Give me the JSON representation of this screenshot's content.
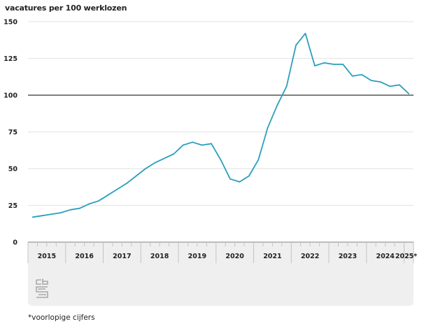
{
  "chart_data": {
    "type": "line",
    "title": "",
    "ylabel": "vacatures per 100 werklozen",
    "xlabel": "",
    "ylim": [
      0,
      150
    ],
    "yticks": [
      "0",
      "25",
      "50",
      "75",
      "100",
      "125",
      "150"
    ],
    "ytick_values": [
      0,
      25,
      50,
      75,
      100,
      125,
      150
    ],
    "xticks": [
      "2015",
      "2016",
      "2017",
      "2018",
      "2019",
      "2020",
      "2021",
      "2022",
      "2023",
      "2024",
      "2025*"
    ],
    "grid": true,
    "reference_line": {
      "y": 100,
      "label": "100"
    },
    "legend": "none",
    "series": [
      {
        "name": "vacatures per 100 werklozen",
        "color": "#2a9fbc",
        "x": [
          "2015K1",
          "2015K2",
          "2015K3",
          "2015K4",
          "2016K1",
          "2016K2",
          "2016K3",
          "2016K4",
          "2017K1",
          "2017K2",
          "2017K3",
          "2017K4",
          "2018K1",
          "2018K2",
          "2018K3",
          "2018K4",
          "2019K1",
          "2019K2",
          "2019K3",
          "2019K4",
          "2020K1",
          "2020K2",
          "2020K3",
          "2020K4",
          "2021K1",
          "2021K2",
          "2021K3",
          "2021K4",
          "2022K1",
          "2022K2",
          "2022K3",
          "2022K4",
          "2023K1",
          "2023K2",
          "2023K3",
          "2023K4",
          "2024K1",
          "2024K2",
          "2024K3",
          "2024K4",
          "2025K1"
        ],
        "values": [
          17,
          18,
          19,
          20,
          22,
          23,
          26,
          28,
          32,
          36,
          40,
          45,
          50,
          54,
          57,
          60,
          66,
          68,
          66,
          67,
          56,
          43,
          41,
          45,
          56,
          78,
          93,
          106,
          134,
          142,
          120,
          122,
          121,
          121,
          113,
          114,
          110,
          109,
          106,
          107,
          101
        ]
      }
    ]
  },
  "footnote": "*voorlopige cijfers",
  "logo": {
    "icon": "cbs-logo-icon"
  },
  "colors": {
    "line": "#2a9fbc",
    "grid": "#e6e6e6",
    "reference": "#555555",
    "axis_band": "#efefef"
  }
}
